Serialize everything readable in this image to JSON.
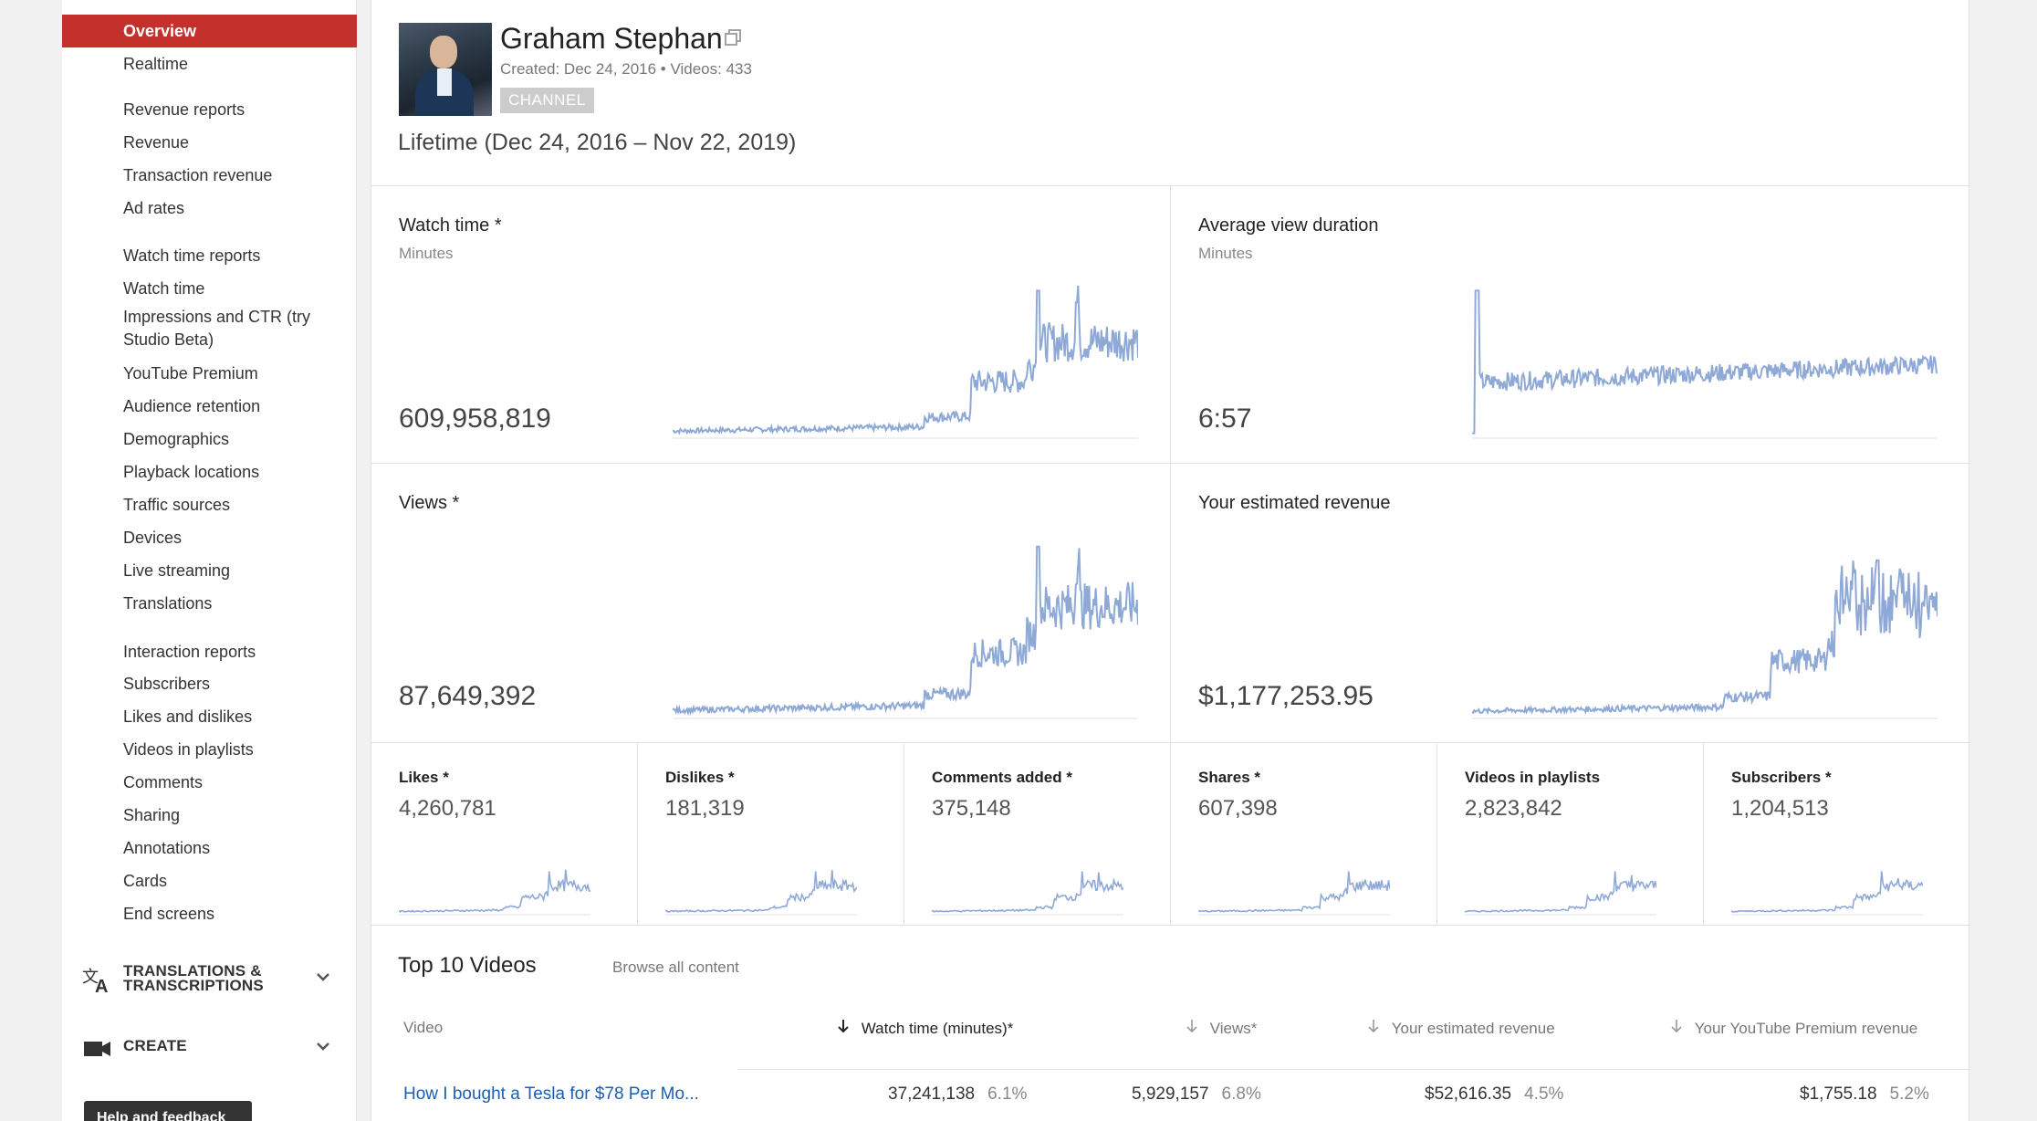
{
  "sidebar": {
    "items": [
      {
        "label": "Overview",
        "active": true
      },
      {
        "label": "Realtime"
      },
      {
        "label": "Revenue reports",
        "heading": true
      },
      {
        "label": "Revenue"
      },
      {
        "label": "Transaction revenue"
      },
      {
        "label": "Ad rates"
      },
      {
        "label": "Watch time reports",
        "heading": true
      },
      {
        "label": "Watch time"
      },
      {
        "label": "Impressions and CTR (try Studio Beta)"
      },
      {
        "label": "YouTube Premium"
      },
      {
        "label": "Audience retention"
      },
      {
        "label": "Demographics"
      },
      {
        "label": "Playback locations"
      },
      {
        "label": "Traffic sources"
      },
      {
        "label": "Devices"
      },
      {
        "label": "Live streaming"
      },
      {
        "label": "Translations"
      },
      {
        "label": "Interaction reports",
        "heading": true
      },
      {
        "label": "Subscribers"
      },
      {
        "label": "Likes and dislikes"
      },
      {
        "label": "Videos in playlists"
      },
      {
        "label": "Comments"
      },
      {
        "label": "Sharing"
      },
      {
        "label": "Annotations"
      },
      {
        "label": "Cards"
      },
      {
        "label": "End screens"
      }
    ],
    "groups": [
      {
        "label_line1": "TRANSLATIONS &",
        "label_line2": "TRANSCRIPTIONS",
        "icon": "translate-icon"
      },
      {
        "label_line1": "CREATE",
        "label_line2": "",
        "icon": "video-camera-icon"
      }
    ],
    "help_label": "Help and feedback"
  },
  "header": {
    "channel_name": "Graham Stephan",
    "meta": "Created: Dec 24, 2016  •  Videos: 433",
    "badge": "CHANNEL",
    "period": "Lifetime (Dec 24, 2016 – Nov 22, 2019)"
  },
  "cards": {
    "watch_time": {
      "title": "Watch time *",
      "sub": "Minutes",
      "value": "609,958,819"
    },
    "avg_view": {
      "title": "Average view duration",
      "sub": "Minutes",
      "value": "6:57"
    },
    "views": {
      "title": "Views *",
      "sub": "",
      "value": "87,649,392"
    },
    "revenue": {
      "title": "Your estimated revenue",
      "sub": "",
      "value": "$1,177,253.95"
    }
  },
  "mini_cards": [
    {
      "title": "Likes *",
      "value": "4,260,781"
    },
    {
      "title": "Dislikes *",
      "value": "181,319"
    },
    {
      "title": "Comments added *",
      "value": "375,148"
    },
    {
      "title": "Shares *",
      "value": "607,398"
    },
    {
      "title": "Videos in playlists",
      "value": "2,823,842"
    },
    {
      "title": "Subscribers *",
      "value": "1,204,513"
    }
  ],
  "top10": {
    "title": "Top 10 Videos",
    "browse": "Browse all content",
    "columns": {
      "video": "Video",
      "watch_time": "Watch time (minutes)*",
      "views": "Views*",
      "revenue": "Your estimated revenue",
      "premium": "Your YouTube Premium revenue"
    },
    "rows": [
      {
        "title": "How I bought a Tesla for $78 Per Mo...",
        "watch_time": "37,241,138",
        "watch_pct": "6.1%",
        "views": "5,929,157",
        "views_pct": "6.8%",
        "revenue": "$52,616.35",
        "revenue_pct": "4.5%",
        "premium": "$1,755.18",
        "premium_pct": "5.2%"
      }
    ]
  },
  "colors": {
    "accent": "#c4302b",
    "sparkline": "#8fa9d6",
    "link": "#1a5fb4"
  }
}
